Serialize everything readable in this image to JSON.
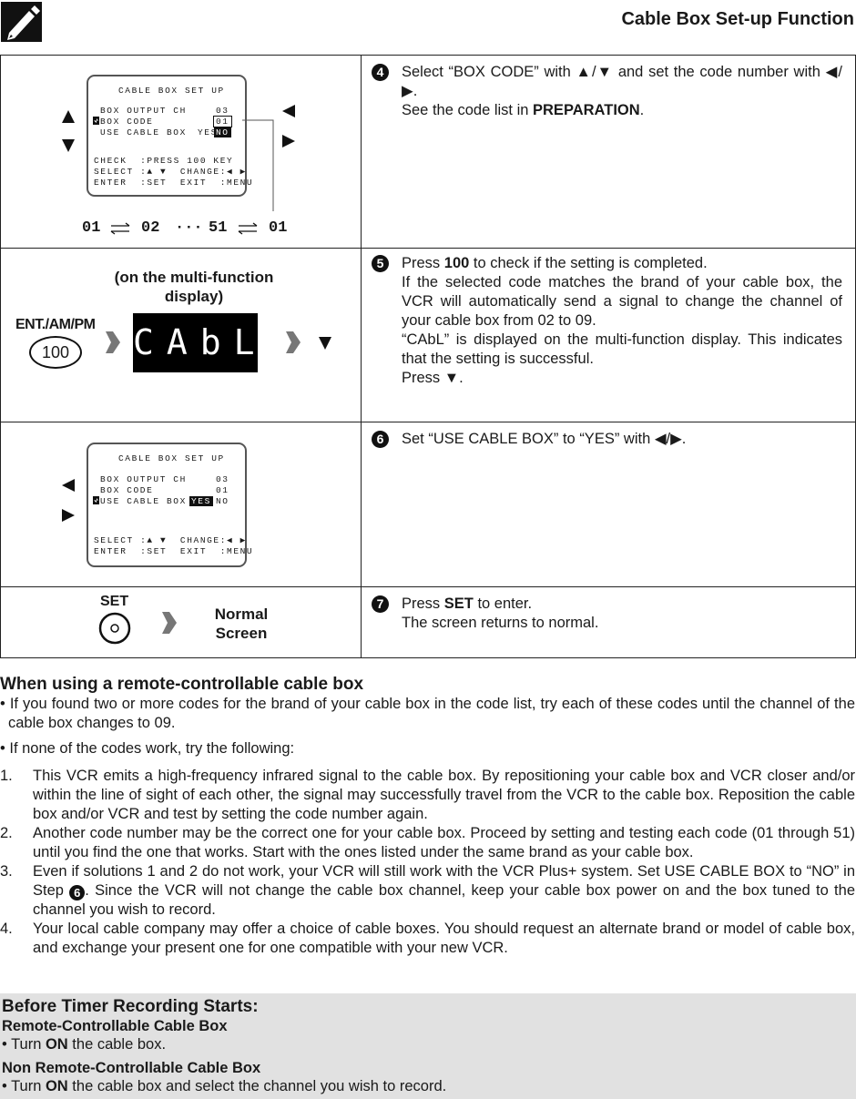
{
  "header": {
    "title": "Cable Box Set-up Function"
  },
  "steps": [
    {
      "number": "4",
      "osd": {
        "title": "CABLE BOX SET UP",
        "rows": [
          [
            "BOX OUTPUT CH",
            "03"
          ],
          [
            "BOX CODE",
            "01"
          ],
          [
            "USE CABLE BOX",
            "YES",
            "NO"
          ]
        ],
        "help": [
          "CHECK  :PRESS 100 KEY",
          "SELECT :▲ ▼  CHANGE:◀ ▶",
          "ENTER  :SET  EXIT  :MENU"
        ]
      },
      "sequence": [
        "01",
        "02",
        "···",
        "51",
        "01"
      ],
      "text": [
        "Select “BOX CODE” with ▲/▼ and set the code number with ◀/▶.",
        "See the code list in ",
        "PREPARATION",
        "."
      ]
    },
    {
      "number": "5",
      "caption": "(on the multi-function display)",
      "button_label": "ENT./AM/PM",
      "button": "100",
      "display": "CAbL",
      "text": [
        "Press ",
        "100",
        " to check if the setting is completed.",
        "If the selected code matches the brand of your cable box, the VCR will automatically send a signal to change the channel of your cable box from 02 to 09.",
        "“CAbL” is displayed on the multi-function display. This indicates that the setting is successful.",
        "Press ▼."
      ]
    },
    {
      "number": "6",
      "osd": {
        "title": "CABLE BOX SET UP",
        "rows": [
          [
            "BOX OUTPUT CH",
            "03"
          ],
          [
            "BOX CODE",
            "01"
          ],
          [
            "USE CABLE BOX",
            "YES",
            "NO"
          ]
        ],
        "help": [
          "SELECT :▲ ▼  CHANGE:◀ ▶",
          "ENTER  :SET  EXIT  :MENU"
        ]
      },
      "text": [
        "Set “USE CABLE BOX” to “YES” with ◀/▶."
      ]
    },
    {
      "number": "7",
      "button_label": "SET",
      "result": "Normal Screen",
      "text": [
        "Press ",
        "SET",
        " to enter.",
        "The screen returns to normal."
      ]
    }
  ],
  "remote_section": {
    "title": "When using a remote-controllable cable box",
    "bullets": [
      "• If you found two or more codes for the brand of your cable box in the code list, try each of these codes until the channel of the cable box changes to 09.",
      "• If none of the codes work, try the following:"
    ],
    "items": [
      {
        "number": "1.",
        "text": [
          "This VCR emits a high-frequency infrared signal to the cable box. By repositioning your cable box and VCR closer and/or within the line of sight of each other, the signal may successfully travel from the VCR to the cable box. Reposition the cable box and/or VCR and test by setting the code number again."
        ]
      },
      {
        "number": "2.",
        "text": [
          "Another code number may be the correct one for your cable box. Proceed by setting and testing each code (01 through 51) until you find the one that works. Start with the ones listed under the same brand as your cable box."
        ]
      },
      {
        "number": "3.",
        "text": [
          "Even if solutions 1 and 2 do not work, your VCR will still work with the VCR Plus+ system. Set USE CABLE BOX to “NO” in Step ",
          "6",
          ". Since the VCR will not change the cable box channel, keep your cable box power on and the box tuned to the channel you wish to record."
        ]
      },
      {
        "number": "4.",
        "text": [
          "Your local cable company may offer a choice of cable boxes. You should request an alternate brand or model of cable box, and exchange your present one for one compatible with your new VCR."
        ]
      }
    ]
  },
  "timer_section": {
    "title": "Before Timer Recording Starts:",
    "groups": [
      {
        "heading": "Remote-Controllable Cable Box",
        "text": [
          "• Turn ",
          "ON",
          " the cable box."
        ]
      },
      {
        "heading": "Non Remote-Controllable Cable Box",
        "text": [
          "• Turn ",
          "ON",
          " the cable box and select the channel you wish to record."
        ]
      }
    ]
  }
}
